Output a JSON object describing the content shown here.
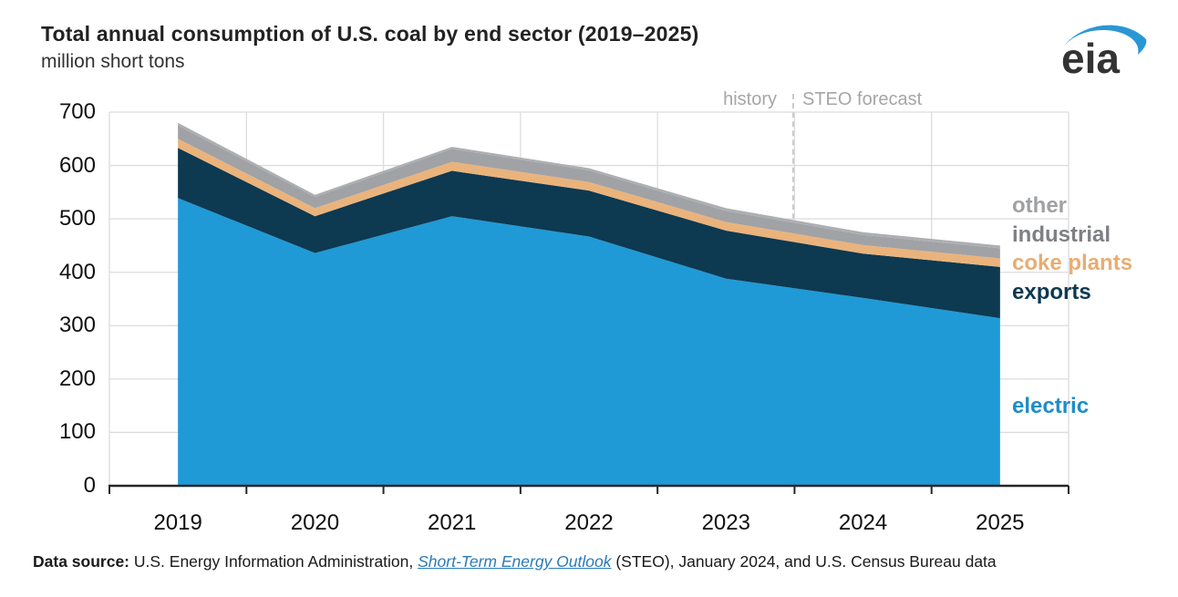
{
  "header": {
    "title": "Total annual consumption of U.S. coal by end sector (2019–2025)",
    "subtitle": "million short tons",
    "logo_text": "eia"
  },
  "annotations": {
    "history_label": "history",
    "forecast_label": "STEO forecast"
  },
  "chart_data": {
    "type": "area",
    "stacked": true,
    "title": "Total annual consumption of U.S. coal by end sector (2019–2025)",
    "ylabel": "million short tons",
    "x": [
      2019,
      2020,
      2021,
      2022,
      2023,
      2024,
      2025
    ],
    "series": [
      {
        "name": "electric",
        "color": "#1f9ad6",
        "label_color": "#1d8dcb",
        "values": [
          539,
          436,
          505,
          467,
          388,
          352,
          314
        ]
      },
      {
        "name": "exports",
        "color": "#0d3951",
        "label_color": "#0d3951",
        "values": [
          94,
          69,
          85,
          86,
          90,
          83,
          96
        ]
      },
      {
        "name": "coke plants",
        "color": "#eab37c",
        "label_color": "#e7ad74",
        "values": [
          17,
          15,
          17,
          16,
          16,
          16,
          16
        ]
      },
      {
        "name": "industrial",
        "color": "#a0a2a5",
        "label_color": "#7e8083",
        "values": [
          25,
          21,
          24,
          22,
          21,
          19,
          19
        ]
      },
      {
        "name": "other",
        "color": "#acaeb1",
        "label_color": "#9fa1a4",
        "values": [
          5,
          4,
          4,
          4,
          5,
          5,
          5
        ]
      }
    ],
    "totals": [
      680,
      545,
      635,
      595,
      520,
      475,
      450
    ],
    "ylim": [
      0,
      700
    ],
    "yticks": [
      0,
      100,
      200,
      300,
      400,
      500,
      600,
      700
    ],
    "forecast_boundary_x": 2023.5,
    "grid": true,
    "legend_position": "right",
    "annotations": [
      "history",
      "STEO forecast"
    ]
  },
  "legend": {
    "upper_items": [
      "other",
      "industrial",
      "coke plants",
      "exports"
    ],
    "lower_item": "electric"
  },
  "footer": {
    "prefix_bold": "Data source: ",
    "text_before_link": "U.S. Energy Information Administration, ",
    "link_text": "Short-Term Energy Outlook",
    "text_after_link": " (STEO), January 2024, and U.S. Census Bureau data"
  },
  "colors": {
    "grid": "#dcdcdc",
    "axis": "#262626",
    "annotation_text": "#a6a6a6",
    "divider_dash": "#c9c9c9",
    "logo_swoosh": "#2a97d5",
    "logo_text": "#333333"
  }
}
